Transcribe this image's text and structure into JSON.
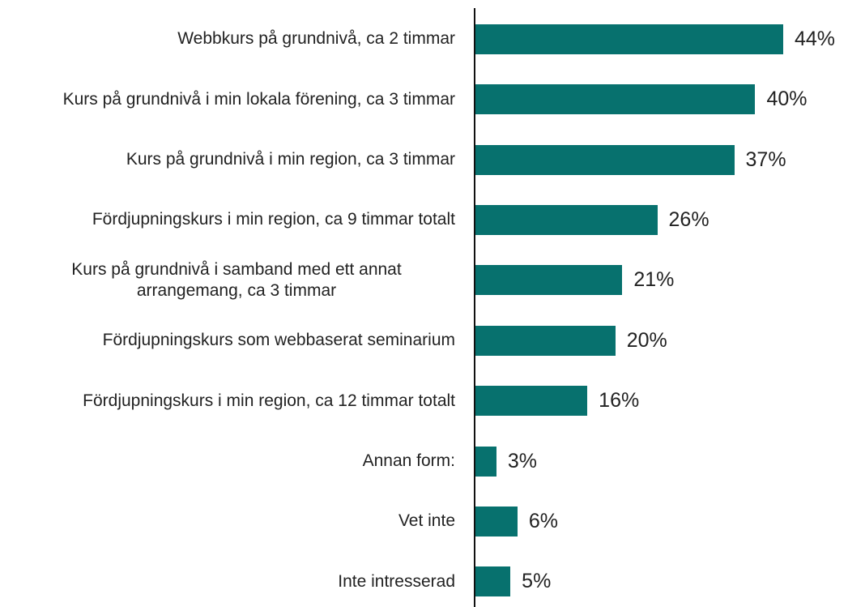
{
  "chart_data": {
    "type": "bar",
    "orientation": "horizontal",
    "color": "#07716e",
    "categories": [
      "Webbkurs på grundnivå, ca 2 timmar",
      "Kurs på grundnivå i min lokala förening, ca 3 timmar",
      "Kurs på grundnivå i min region, ca 3 timmar",
      "Fördjupningskurs i min region, ca 9 timmar totalt",
      "Kurs på grundnivå i samband med ett annat arrangemang, ca 3 timmar",
      "Fördjupningskurs som webbaserat seminarium",
      "Fördjupningskurs i min region, ca 12 timmar totalt",
      "Annan form:",
      "Vet inte",
      "Inte intresserad"
    ],
    "values": [
      44,
      40,
      37,
      26,
      21,
      20,
      16,
      3,
      6,
      5
    ],
    "value_labels": [
      "44%",
      "40%",
      "37%",
      "26%",
      "21%",
      "20%",
      "16%",
      "3%",
      "6%",
      "5%"
    ]
  }
}
